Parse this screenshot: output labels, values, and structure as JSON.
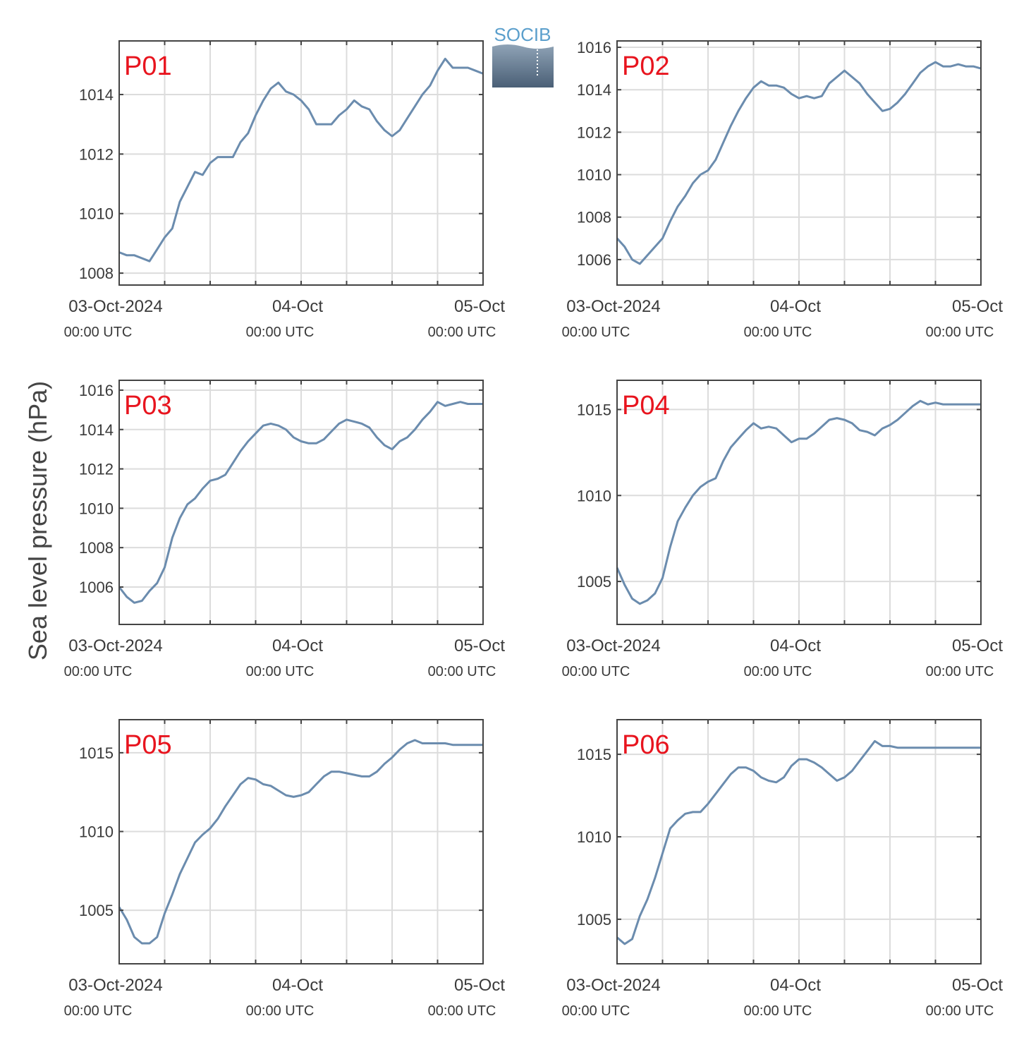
{
  "chart_data": {
    "type": "line",
    "ylabel": "Sea level pressure (hPa)",
    "logo": "SOCIB",
    "xtick_labels": [
      {
        "date": "03-Oct-2024",
        "time": "00:00 UTC"
      },
      {
        "date": "04-Oct",
        "time": "00:00 UTC"
      },
      {
        "date": "05-Oct",
        "time": "00:00 UTC"
      }
    ],
    "x_hours_range": [
      0,
      48
    ],
    "colors": {
      "line": "#6b8cae",
      "label": "#e8141e",
      "grid": "#dcdcdc",
      "axis": "#444444"
    },
    "grid": true,
    "panels": [
      {
        "label": "P01",
        "ylim": [
          1007.6,
          1015.8
        ],
        "yticks": [
          1008,
          1010,
          1012,
          1014
        ],
        "x": [
          0,
          1,
          2,
          3,
          4,
          5,
          6,
          7,
          8,
          9,
          10,
          11,
          12,
          13,
          14,
          15,
          16,
          17,
          18,
          19,
          20,
          21,
          22,
          23,
          24,
          25,
          26,
          27,
          28,
          29,
          30,
          31,
          32,
          33,
          34,
          35,
          36,
          37,
          38,
          39,
          40,
          41,
          42,
          43,
          44,
          45,
          46,
          47,
          48
        ],
        "y": [
          1008.7,
          1008.6,
          1008.6,
          1008.5,
          1008.4,
          1008.8,
          1009.2,
          1009.5,
          1010.4,
          1010.9,
          1011.4,
          1011.3,
          1011.7,
          1011.9,
          1011.9,
          1011.9,
          1012.4,
          1012.7,
          1013.3,
          1013.8,
          1014.2,
          1014.4,
          1014.1,
          1014.0,
          1013.8,
          1013.5,
          1013.0,
          1013.0,
          1013.0,
          1013.3,
          1013.5,
          1013.8,
          1013.6,
          1013.5,
          1013.1,
          1012.8,
          1012.6,
          1012.8,
          1013.2,
          1013.6,
          1014.0,
          1014.3,
          1014.8,
          1015.2,
          1014.9,
          1014.9,
          1014.9,
          1014.8,
          1014.7
        ]
      },
      {
        "label": "P02",
        "ylim": [
          1004.8,
          1016.3
        ],
        "yticks": [
          1006,
          1008,
          1010,
          1012,
          1014,
          1016
        ],
        "x": [
          0,
          1,
          2,
          3,
          4,
          5,
          6,
          7,
          8,
          9,
          10,
          11,
          12,
          13,
          14,
          15,
          16,
          17,
          18,
          19,
          20,
          21,
          22,
          23,
          24,
          25,
          26,
          27,
          28,
          29,
          30,
          31,
          32,
          33,
          34,
          35,
          36,
          37,
          38,
          39,
          40,
          41,
          42,
          43,
          44,
          45,
          46,
          47,
          48
        ],
        "y": [
          1007.0,
          1006.6,
          1006.0,
          1005.8,
          1006.2,
          1006.6,
          1007.0,
          1007.8,
          1008.5,
          1009.0,
          1009.6,
          1010.0,
          1010.2,
          1010.7,
          1011.5,
          1012.3,
          1013.0,
          1013.6,
          1014.1,
          1014.4,
          1014.2,
          1014.2,
          1014.1,
          1013.8,
          1013.6,
          1013.7,
          1013.6,
          1013.7,
          1014.3,
          1014.6,
          1014.9,
          1014.6,
          1014.3,
          1013.8,
          1013.4,
          1013.0,
          1013.1,
          1013.4,
          1013.8,
          1014.3,
          1014.8,
          1015.1,
          1015.3,
          1015.1,
          1015.1,
          1015.2,
          1015.1,
          1015.1,
          1015.0
        ]
      },
      {
        "label": "P03",
        "ylim": [
          1004.1,
          1016.5
        ],
        "yticks": [
          1006,
          1008,
          1010,
          1012,
          1014,
          1016
        ],
        "x": [
          0,
          1,
          2,
          3,
          4,
          5,
          6,
          7,
          8,
          9,
          10,
          11,
          12,
          13,
          14,
          15,
          16,
          17,
          18,
          19,
          20,
          21,
          22,
          23,
          24,
          25,
          26,
          27,
          28,
          29,
          30,
          31,
          32,
          33,
          34,
          35,
          36,
          37,
          38,
          39,
          40,
          41,
          42,
          43,
          44,
          45,
          46,
          47,
          48
        ],
        "y": [
          1006.0,
          1005.5,
          1005.2,
          1005.3,
          1005.8,
          1006.2,
          1007.0,
          1008.5,
          1009.5,
          1010.2,
          1010.5,
          1011.0,
          1011.4,
          1011.5,
          1011.7,
          1012.3,
          1012.9,
          1013.4,
          1013.8,
          1014.2,
          1014.3,
          1014.2,
          1014.0,
          1013.6,
          1013.4,
          1013.3,
          1013.3,
          1013.5,
          1013.9,
          1014.3,
          1014.5,
          1014.4,
          1014.3,
          1014.1,
          1013.6,
          1013.2,
          1013.0,
          1013.4,
          1013.6,
          1014.0,
          1014.5,
          1014.9,
          1015.4,
          1015.2,
          1015.3,
          1015.4,
          1015.3,
          1015.3,
          1015.3
        ]
      },
      {
        "label": "P04",
        "ylim": [
          1002.5,
          1016.7
        ],
        "yticks": [
          1005,
          1010,
          1015
        ],
        "x": [
          0,
          1,
          2,
          3,
          4,
          5,
          6,
          7,
          8,
          9,
          10,
          11,
          12,
          13,
          14,
          15,
          16,
          17,
          18,
          19,
          20,
          21,
          22,
          23,
          24,
          25,
          26,
          27,
          28,
          29,
          30,
          31,
          32,
          33,
          34,
          35,
          36,
          37,
          38,
          39,
          40,
          41,
          42,
          43,
          44,
          45,
          46,
          47,
          48
        ],
        "y": [
          1005.8,
          1004.8,
          1004.0,
          1003.7,
          1003.9,
          1004.3,
          1005.2,
          1007.0,
          1008.5,
          1009.3,
          1010.0,
          1010.5,
          1010.8,
          1011.0,
          1012.0,
          1012.8,
          1013.3,
          1013.8,
          1014.2,
          1013.9,
          1014.0,
          1013.9,
          1013.5,
          1013.1,
          1013.3,
          1013.3,
          1013.6,
          1014.0,
          1014.4,
          1014.5,
          1014.4,
          1014.2,
          1013.8,
          1013.7,
          1013.5,
          1013.9,
          1014.1,
          1014.4,
          1014.8,
          1015.2,
          1015.5,
          1015.3,
          1015.4,
          1015.3,
          1015.3,
          1015.3,
          1015.3,
          1015.3,
          1015.3
        ]
      },
      {
        "label": "P05",
        "ylim": [
          1001.6,
          1017.1
        ],
        "yticks": [
          1005,
          1010,
          1015
        ],
        "x": [
          0,
          1,
          2,
          3,
          4,
          5,
          6,
          7,
          8,
          9,
          10,
          11,
          12,
          13,
          14,
          15,
          16,
          17,
          18,
          19,
          20,
          21,
          22,
          23,
          24,
          25,
          26,
          27,
          28,
          29,
          30,
          31,
          32,
          33,
          34,
          35,
          36,
          37,
          38,
          39,
          40,
          41,
          42,
          43,
          44,
          45,
          46,
          47,
          48
        ],
        "y": [
          1005.2,
          1004.4,
          1003.3,
          1002.9,
          1002.9,
          1003.3,
          1004.8,
          1006.0,
          1007.3,
          1008.3,
          1009.3,
          1009.8,
          1010.2,
          1010.8,
          1011.6,
          1012.3,
          1013.0,
          1013.4,
          1013.3,
          1013.0,
          1012.9,
          1012.6,
          1012.3,
          1012.2,
          1012.3,
          1012.5,
          1013.0,
          1013.5,
          1013.8,
          1013.8,
          1013.7,
          1013.6,
          1013.5,
          1013.5,
          1013.8,
          1014.3,
          1014.7,
          1015.2,
          1015.6,
          1015.8,
          1015.6,
          1015.6,
          1015.6,
          1015.6,
          1015.5,
          1015.5,
          1015.5,
          1015.5,
          1015.5
        ]
      },
      {
        "label": "P06",
        "ylim": [
          1002.3,
          1017.1
        ],
        "yticks": [
          1005,
          1010,
          1015
        ],
        "x": [
          0,
          1,
          2,
          3,
          4,
          5,
          6,
          7,
          8,
          9,
          10,
          11,
          12,
          13,
          14,
          15,
          16,
          17,
          18,
          19,
          20,
          21,
          22,
          23,
          24,
          25,
          26,
          27,
          28,
          29,
          30,
          31,
          32,
          33,
          34,
          35,
          36,
          37,
          38,
          39,
          40,
          41,
          42,
          43,
          44,
          45,
          46,
          47,
          48
        ],
        "y": [
          1003.9,
          1003.5,
          1003.8,
          1005.2,
          1006.2,
          1007.5,
          1009.0,
          1010.5,
          1011.0,
          1011.4,
          1011.5,
          1011.5,
          1012.0,
          1012.6,
          1013.2,
          1013.8,
          1014.2,
          1014.2,
          1014.0,
          1013.6,
          1013.4,
          1013.3,
          1013.6,
          1014.3,
          1014.7,
          1014.7,
          1014.5,
          1014.2,
          1013.8,
          1013.4,
          1013.6,
          1014.0,
          1014.6,
          1015.2,
          1015.8,
          1015.5,
          1015.5,
          1015.4,
          1015.4,
          1015.4,
          1015.4,
          1015.4,
          1015.4,
          1015.4,
          1015.4,
          1015.4,
          1015.4,
          1015.4,
          1015.4
        ]
      }
    ]
  }
}
